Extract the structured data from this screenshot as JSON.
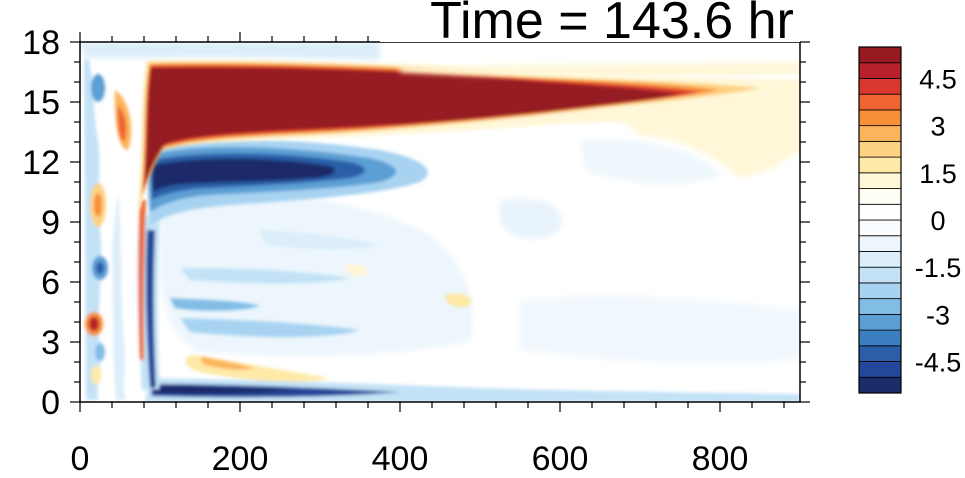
{
  "chart_data": {
    "type": "heatmap",
    "title": "Time = 143.6 hr",
    "xlim": [
      0,
      900
    ],
    "ylim": [
      0,
      18
    ],
    "x_ticks": [
      "0",
      "200",
      "400",
      "600",
      "800"
    ],
    "x_tick_values": [
      0,
      200,
      400,
      600,
      800
    ],
    "y_ticks": [
      "0",
      "3",
      "6",
      "9",
      "12",
      "15",
      "18"
    ],
    "y_tick_values": [
      0,
      3,
      6,
      9,
      12,
      15,
      18
    ],
    "colorbar": {
      "min": -5.5,
      "max": 5.5,
      "step": 0.5,
      "labels": [
        "4.5",
        "3",
        "1.5",
        "0",
        "-1.5",
        "-3",
        "-4.5"
      ],
      "label_values": [
        4.5,
        3,
        1.5,
        0,
        -1.5,
        -3,
        -4.5
      ],
      "colors": [
        "#1a2c69",
        "#23479a",
        "#2c5ea8",
        "#3b7ec0",
        "#5b9fd4",
        "#82bde6",
        "#a7d3f1",
        "#c3e2f6",
        "#dbeefa",
        "#ecf6fc",
        "#f8fcfe",
        "#ffffff",
        "#fffef4",
        "#fff7d7",
        "#fee9a7",
        "#fdd282",
        "#fcb45a",
        "#f88f3b",
        "#ee6532",
        "#d9382f",
        "#b8202a",
        "#951b20"
      ]
    }
  }
}
